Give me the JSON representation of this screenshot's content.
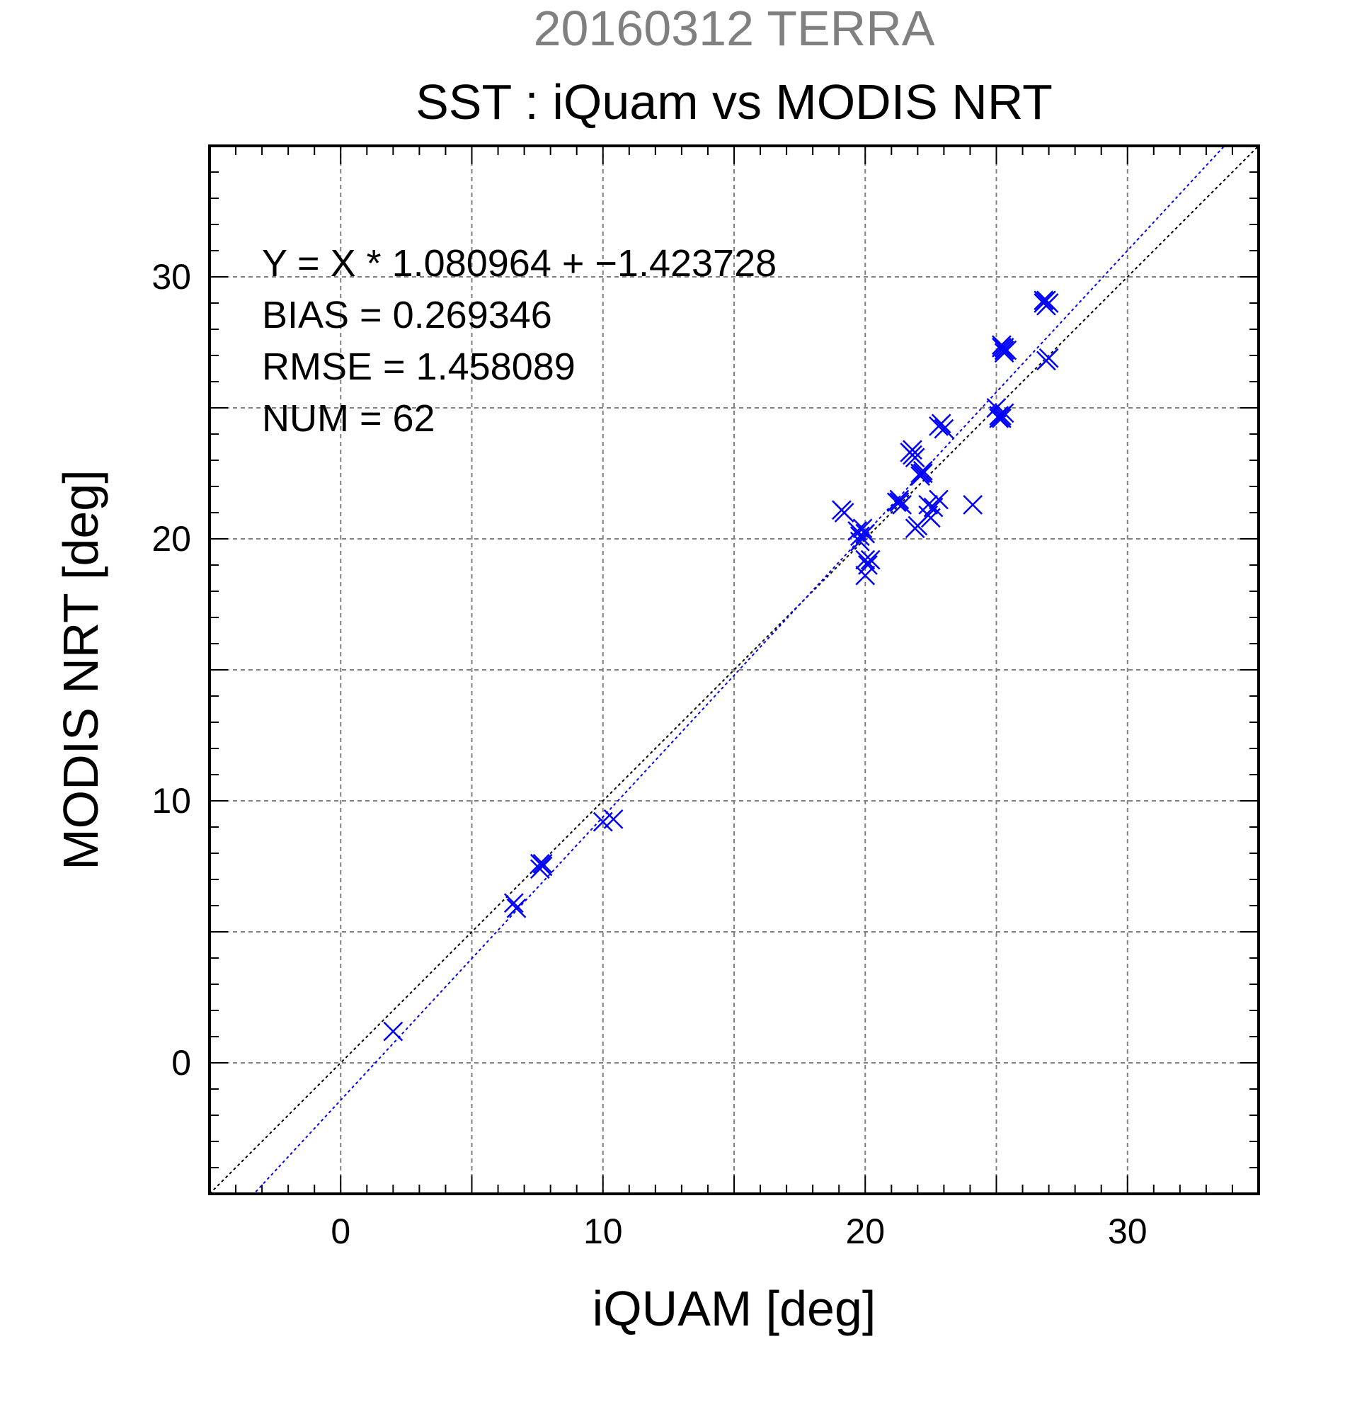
{
  "sup_title": "20160312 TERRA",
  "title": "SST : iQuam vs MODIS NRT",
  "stats": {
    "equation": "Y = X * 1.080964 + −1.423728",
    "bias": "BIAS = 0.269346",
    "rmse": "RMSE = 1.458089",
    "num": "NUM = 62"
  },
  "chart_data": {
    "type": "scatter",
    "title": "SST : iQuam vs MODIS NRT",
    "subtitle": "20160312 TERRA",
    "xlabel": "iQUAM [deg]",
    "ylabel": "MODIS NRT [deg]",
    "xlim": [
      -5,
      35
    ],
    "ylim": [
      -5,
      35
    ],
    "x_ticks": [
      0,
      10,
      20,
      30
    ],
    "y_ticks": [
      0,
      10,
      20,
      30
    ],
    "grid": true,
    "marker": "x",
    "marker_color": "#0000ff",
    "regression": {
      "slope": 1.080964,
      "intercept": -1.423728,
      "color": "#0000ff",
      "style": "dotted"
    },
    "identity_line": {
      "slope": 1,
      "intercept": 0,
      "color": "#000000",
      "style": "dotted"
    },
    "points": [
      [
        2.0,
        1.2
      ],
      [
        6.6,
        6.1
      ],
      [
        6.7,
        5.9
      ],
      [
        7.6,
        7.6
      ],
      [
        7.7,
        7.5
      ],
      [
        7.6,
        7.4
      ],
      [
        7.7,
        7.6
      ],
      [
        10.0,
        9.2
      ],
      [
        10.4,
        9.3
      ],
      [
        19.1,
        21.1
      ],
      [
        19.2,
        21.0
      ],
      [
        19.7,
        20.3
      ],
      [
        19.8,
        20.1
      ],
      [
        19.9,
        20.4
      ],
      [
        20.0,
        20.2
      ],
      [
        19.8,
        19.9
      ],
      [
        20.0,
        19.2
      ],
      [
        20.1,
        19.0
      ],
      [
        20.2,
        19.2
      ],
      [
        20.0,
        18.6
      ],
      [
        21.2,
        21.4
      ],
      [
        21.3,
        21.5
      ],
      [
        21.4,
        21.3
      ],
      [
        21.3,
        21.4
      ],
      [
        21.7,
        23.3
      ],
      [
        21.8,
        23.4
      ],
      [
        21.9,
        23.1
      ],
      [
        21.8,
        23.2
      ],
      [
        21.9,
        20.4
      ],
      [
        22.0,
        20.5
      ],
      [
        22.1,
        22.5
      ],
      [
        22.2,
        22.6
      ],
      [
        22.1,
        22.4
      ],
      [
        22.2,
        22.5
      ],
      [
        22.4,
        21.3
      ],
      [
        22.5,
        20.8
      ],
      [
        22.6,
        21.2
      ],
      [
        22.8,
        21.5
      ],
      [
        22.4,
        20.9
      ],
      [
        22.8,
        24.3
      ],
      [
        22.9,
        24.4
      ],
      [
        23.0,
        24.2
      ],
      [
        24.1,
        21.3
      ],
      [
        25.0,
        25.0
      ],
      [
        25.1,
        24.7
      ],
      [
        25.2,
        24.6
      ],
      [
        25.3,
        24.8
      ],
      [
        25.1,
        24.6
      ],
      [
        25.2,
        24.7
      ],
      [
        25.2,
        27.3
      ],
      [
        25.3,
        27.2
      ],
      [
        25.2,
        27.4
      ],
      [
        25.3,
        27.3
      ],
      [
        25.4,
        27.2
      ],
      [
        25.3,
        27.1
      ],
      [
        26.8,
        29.0
      ],
      [
        26.9,
        29.1
      ],
      [
        27.0,
        29.0
      ],
      [
        26.9,
        28.9
      ],
      [
        26.8,
        29.1
      ],
      [
        27.0,
        26.9
      ],
      [
        26.9,
        26.8
      ]
    ]
  }
}
